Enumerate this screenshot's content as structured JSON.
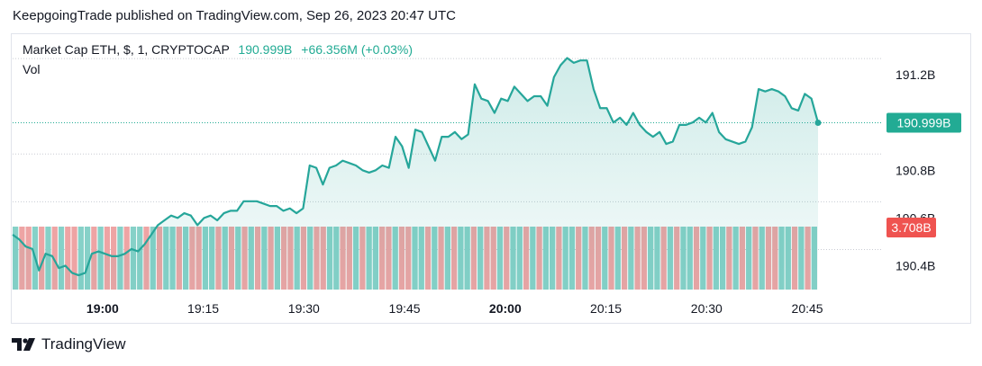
{
  "header": {
    "published_line": "KeepgoingTrade published on TradingView.com, Sep 26, 2023 20:47 UTC"
  },
  "legend": {
    "symbol": "Market Cap ETH, $, 1, CRYPTOCAP",
    "last_value": "190.999B",
    "change": "+66.356M (+0.03%)",
    "volume_label": "Vol"
  },
  "footer": {
    "brand": "TradingView"
  },
  "colors": {
    "line": "#26a69a",
    "up": "#86d1c8",
    "down": "#eea4a4",
    "price_badge": "#22ab94",
    "volume_badge": "#ef5350",
    "axis_text": "#131722"
  },
  "chart_data": {
    "type": "area",
    "y_unit": "B",
    "ylim": [
      190.3,
      191.37
    ],
    "y_ticks": [
      "191.2B",
      "190.8B",
      "190.6B",
      "190.4B"
    ],
    "y_tick_values": [
      191.2,
      190.8,
      190.6,
      190.4
    ],
    "x_ticks": [
      "19:00",
      "19:15",
      "19:30",
      "19:45",
      "20:00",
      "20:15",
      "20:30",
      "20:45"
    ],
    "x_tick_minutes": [
      1140,
      1155,
      1170,
      1185,
      1200,
      1215,
      1230,
      1245
    ],
    "x_tick_bold": [
      true,
      false,
      false,
      false,
      true,
      false,
      false,
      false
    ],
    "x_start_minute": 1126.6,
    "x_end_minute": 1246.6,
    "last_price_label": "190.999B",
    "last_price": 190.999,
    "volume_label": "3.708B",
    "volume_value": 3.708,
    "series": [
      {
        "name": "Market Cap ETH",
        "values": [
          190.53,
          190.51,
          190.48,
          190.47,
          190.38,
          190.45,
          190.44,
          190.39,
          190.4,
          190.37,
          190.36,
          190.37,
          190.45,
          190.46,
          190.45,
          190.44,
          190.44,
          190.45,
          190.47,
          190.46,
          190.49,
          190.53,
          190.57,
          190.59,
          190.61,
          190.6,
          190.62,
          190.61,
          190.57,
          190.6,
          190.61,
          190.59,
          190.62,
          190.63,
          190.63,
          190.67,
          190.67,
          190.67,
          190.66,
          190.65,
          190.65,
          190.63,
          190.64,
          190.62,
          190.64,
          190.82,
          190.81,
          190.74,
          190.81,
          190.82,
          190.84,
          190.83,
          190.82,
          190.8,
          190.79,
          190.8,
          190.82,
          190.81,
          190.94,
          190.9,
          190.81,
          190.97,
          190.96,
          190.9,
          190.84,
          190.94,
          190.94,
          190.96,
          190.93,
          190.95,
          191.16,
          191.1,
          191.09,
          191.04,
          191.1,
          191.09,
          191.15,
          191.12,
          191.09,
          191.11,
          191.11,
          191.07,
          191.19,
          191.24,
          191.27,
          191.25,
          191.26,
          191.26,
          191.14,
          191.06,
          191.06,
          191.0,
          191.02,
          190.99,
          191.04,
          190.99,
          190.96,
          190.94,
          190.96,
          190.91,
          190.92,
          190.99,
          190.99,
          191.0,
          191.02,
          191.0,
          191.04,
          190.96,
          190.93,
          190.92,
          190.91,
          190.92,
          190.98,
          191.14,
          191.13,
          191.14,
          191.13,
          191.11,
          191.06,
          191.05,
          191.12,
          191.1,
          190.999
        ]
      },
      {
        "name": "Vol",
        "direction": [
          "u",
          "d",
          "d",
          "u",
          "d",
          "u",
          "d",
          "u",
          "d",
          "d",
          "u",
          "u",
          "d",
          "u",
          "d",
          "d",
          "u",
          "d",
          "u",
          "u",
          "d",
          "u",
          "d",
          "u",
          "u",
          "d",
          "u",
          "d",
          "d",
          "u",
          "u",
          "d",
          "u",
          "d",
          "u",
          "d",
          "u",
          "d",
          "u",
          "d",
          "u",
          "d",
          "d",
          "u",
          "d",
          "u",
          "d",
          "d",
          "u",
          "u",
          "d",
          "d",
          "u",
          "d",
          "u",
          "u",
          "d",
          "d",
          "u",
          "d",
          "d",
          "u",
          "u",
          "d",
          "u",
          "d",
          "u",
          "d",
          "u",
          "u",
          "d",
          "u",
          "d",
          "d",
          "u",
          "d",
          "u",
          "u",
          "d",
          "u",
          "d",
          "u",
          "u",
          "d",
          "u",
          "u",
          "d",
          "u",
          "d",
          "d",
          "u",
          "d",
          "u",
          "d",
          "u",
          "d",
          "d",
          "u",
          "u",
          "d",
          "u",
          "d",
          "u",
          "u",
          "d",
          "u",
          "d",
          "u",
          "u",
          "d",
          "u",
          "d",
          "u",
          "d",
          "u",
          "d",
          "d",
          "u",
          "u",
          "d",
          "u",
          "d",
          "u"
        ]
      }
    ]
  }
}
